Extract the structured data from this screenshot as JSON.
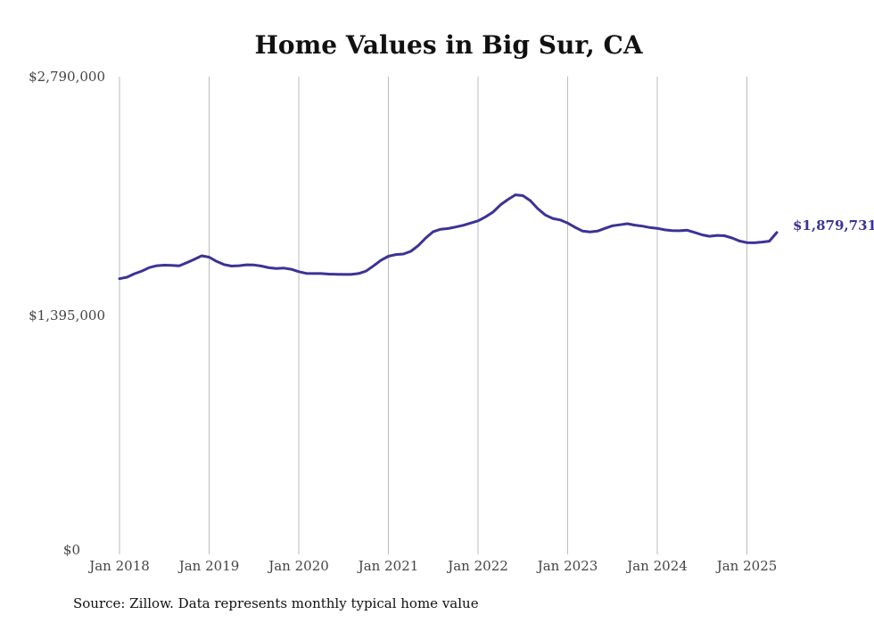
{
  "colors": {
    "line": "#3b3395",
    "grid": "#bdbdbd",
    "text": "#444444"
  },
  "source": "Source: Zillow. Data represents monthly typical home value",
  "chart_data": {
    "type": "line",
    "title": "Home Values in Big Sur, CA",
    "xlabel": "",
    "ylabel": "",
    "ylim": [
      0,
      2790000
    ],
    "yticks": [
      {
        "value": 0,
        "label": "$0"
      },
      {
        "value": 1395000,
        "label": "$1,395,000"
      },
      {
        "value": 2790000,
        "label": "$2,790,000"
      }
    ],
    "xticks": [
      {
        "x": "2018-01",
        "label": "Jan 2018"
      },
      {
        "x": "2019-01",
        "label": "Jan 2019"
      },
      {
        "x": "2020-01",
        "label": "Jan 2020"
      },
      {
        "x": "2021-01",
        "label": "Jan 2021"
      },
      {
        "x": "2022-01",
        "label": "Jan 2022"
      },
      {
        "x": "2023-01",
        "label": "Jan 2023"
      },
      {
        "x": "2024-01",
        "label": "Jan 2024"
      },
      {
        "x": "2025-01",
        "label": "Jan 2025"
      }
    ],
    "grid": {
      "vertical": true,
      "horizontal": false
    },
    "end_label": "$1,879,731",
    "x": [
      "2018-01",
      "2018-02",
      "2018-03",
      "2018-04",
      "2018-05",
      "2018-06",
      "2018-07",
      "2018-08",
      "2018-09",
      "2018-10",
      "2018-11",
      "2018-12",
      "2019-01",
      "2019-02",
      "2019-03",
      "2019-04",
      "2019-05",
      "2019-06",
      "2019-07",
      "2019-08",
      "2019-09",
      "2019-10",
      "2019-11",
      "2019-12",
      "2020-01",
      "2020-02",
      "2020-03",
      "2020-04",
      "2020-05",
      "2020-06",
      "2020-07",
      "2020-08",
      "2020-09",
      "2020-10",
      "2020-11",
      "2020-12",
      "2021-01",
      "2021-02",
      "2021-03",
      "2021-04",
      "2021-05",
      "2021-06",
      "2021-07",
      "2021-08",
      "2021-09",
      "2021-10",
      "2021-11",
      "2021-12",
      "2022-01",
      "2022-02",
      "2022-03",
      "2022-04",
      "2022-05",
      "2022-06",
      "2022-07",
      "2022-08",
      "2022-09",
      "2022-10",
      "2022-11",
      "2022-12",
      "2023-01",
      "2023-02",
      "2023-03",
      "2023-04",
      "2023-05",
      "2023-06",
      "2023-07",
      "2023-08",
      "2023-09",
      "2023-10",
      "2023-11",
      "2023-12",
      "2024-01",
      "2024-02",
      "2024-03",
      "2024-04",
      "2024-05",
      "2024-06",
      "2024-07",
      "2024-08",
      "2024-09",
      "2024-10",
      "2024-11",
      "2024-12",
      "2025-01",
      "2025-02",
      "2025-03",
      "2025-04",
      "2025-05"
    ],
    "series": [
      {
        "values": [
          1610000,
          1619000,
          1639000,
          1655000,
          1675000,
          1686000,
          1689000,
          1688000,
          1685000,
          1703000,
          1723000,
          1744000,
          1736000,
          1711000,
          1692000,
          1684000,
          1686000,
          1691000,
          1690000,
          1684000,
          1674000,
          1670000,
          1672000,
          1665000,
          1651000,
          1641000,
          1640000,
          1640000,
          1637000,
          1636000,
          1635000,
          1635000,
          1640000,
          1654000,
          1685000,
          1717000,
          1741000,
          1751000,
          1754000,
          1770000,
          1803000,
          1848000,
          1885000,
          1899000,
          1903000,
          1912000,
          1922000,
          1935000,
          1948000,
          1971000,
          1999000,
          2041000,
          2072000,
          2100000,
          2095000,
          2066000,
          2019000,
          1982000,
          1962000,
          1953000,
          1935000,
          1910000,
          1888000,
          1883000,
          1888000,
          1904000,
          1919000,
          1925000,
          1931000,
          1923000,
          1917000,
          1909000,
          1904000,
          1895000,
          1891000,
          1890000,
          1893000,
          1880000,
          1866000,
          1858000,
          1863000,
          1861000,
          1848000,
          1830000,
          1821000,
          1820000,
          1824000,
          1829000,
          1879731
        ]
      }
    ]
  }
}
